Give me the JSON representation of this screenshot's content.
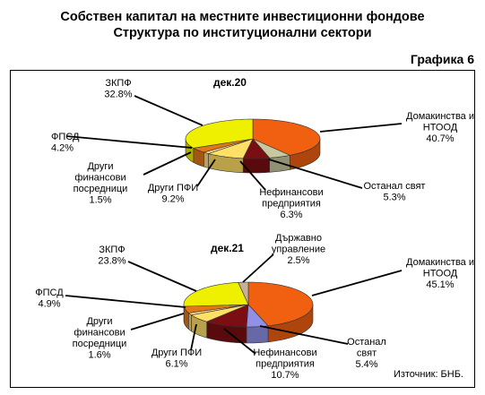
{
  "header": {
    "title_line1": "Собствен капитал на местните инвестиционни фондове",
    "title_line2": "Структура по институционални сектори",
    "figure_number": "Графика 6"
  },
  "footer": {
    "source": "Източник: БНБ."
  },
  "colors": {
    "households": "#f06010",
    "rest_of_world": "#c8c8a0",
    "nonfinancial": "#7a0e12",
    "other_mfi": "#ffe066",
    "other_fin": "#ffdd88",
    "fpsd": "#e07818",
    "zkpf": "#eef000",
    "government": "#c8b098",
    "rest_of_world_21": "#9090e8"
  },
  "chart_data": [
    {
      "type": "pie",
      "title": "дек.20",
      "slices": [
        {
          "key": "households",
          "label": [
            "Домакинства и",
            "НТООД"
          ],
          "value": 40.7,
          "value_text": "40.7%"
        },
        {
          "key": "rest_of_world",
          "label": [
            "Останал свят"
          ],
          "value": 5.3,
          "value_text": "5.3%"
        },
        {
          "key": "nonfinancial",
          "label": [
            "Нефинансови",
            "предприятия"
          ],
          "value": 6.3,
          "value_text": "6.3%"
        },
        {
          "key": "other_mfi",
          "label": [
            "Други ПФИ"
          ],
          "value": 9.2,
          "value_text": "9.2%"
        },
        {
          "key": "other_fin",
          "label": [
            "Други",
            "финансови",
            "посредници"
          ],
          "value": 1.5,
          "value_text": "1.5%"
        },
        {
          "key": "fpsd",
          "label": [
            "ФПСД"
          ],
          "value": 4.2,
          "value_text": "4.2%"
        },
        {
          "key": "zkpf",
          "label": [
            "ЗКПФ"
          ],
          "value": 32.8,
          "value_text": "32.8%"
        }
      ]
    },
    {
      "type": "pie",
      "title": "дек.21",
      "slices": [
        {
          "key": "households",
          "label": [
            "Домакинства и",
            "НТООД"
          ],
          "value": 45.1,
          "value_text": "45.1%"
        },
        {
          "key": "rest_of_world_21",
          "label": [
            "Останал",
            "свят"
          ],
          "value": 5.4,
          "value_text": "5.4%"
        },
        {
          "key": "nonfinancial",
          "label": [
            "Нефинансови",
            "предприятия"
          ],
          "value": 10.7,
          "value_text": "10.7%"
        },
        {
          "key": "other_mfi",
          "label": [
            "Други ПФИ"
          ],
          "value": 6.1,
          "value_text": "6.1%"
        },
        {
          "key": "other_fin",
          "label": [
            "Други",
            "финансови",
            "посредници"
          ],
          "value": 1.6,
          "value_text": "1.6%"
        },
        {
          "key": "fpsd",
          "label": [
            "ФПСД"
          ],
          "value": 4.9,
          "value_text": "4.9%"
        },
        {
          "key": "zkpf",
          "label": [
            "ЗКПФ"
          ],
          "value": 23.8,
          "value_text": "23.8%"
        },
        {
          "key": "government",
          "label": [
            "Държавно",
            "управление"
          ],
          "value": 2.5,
          "value_text": "2.5%"
        }
      ]
    }
  ]
}
